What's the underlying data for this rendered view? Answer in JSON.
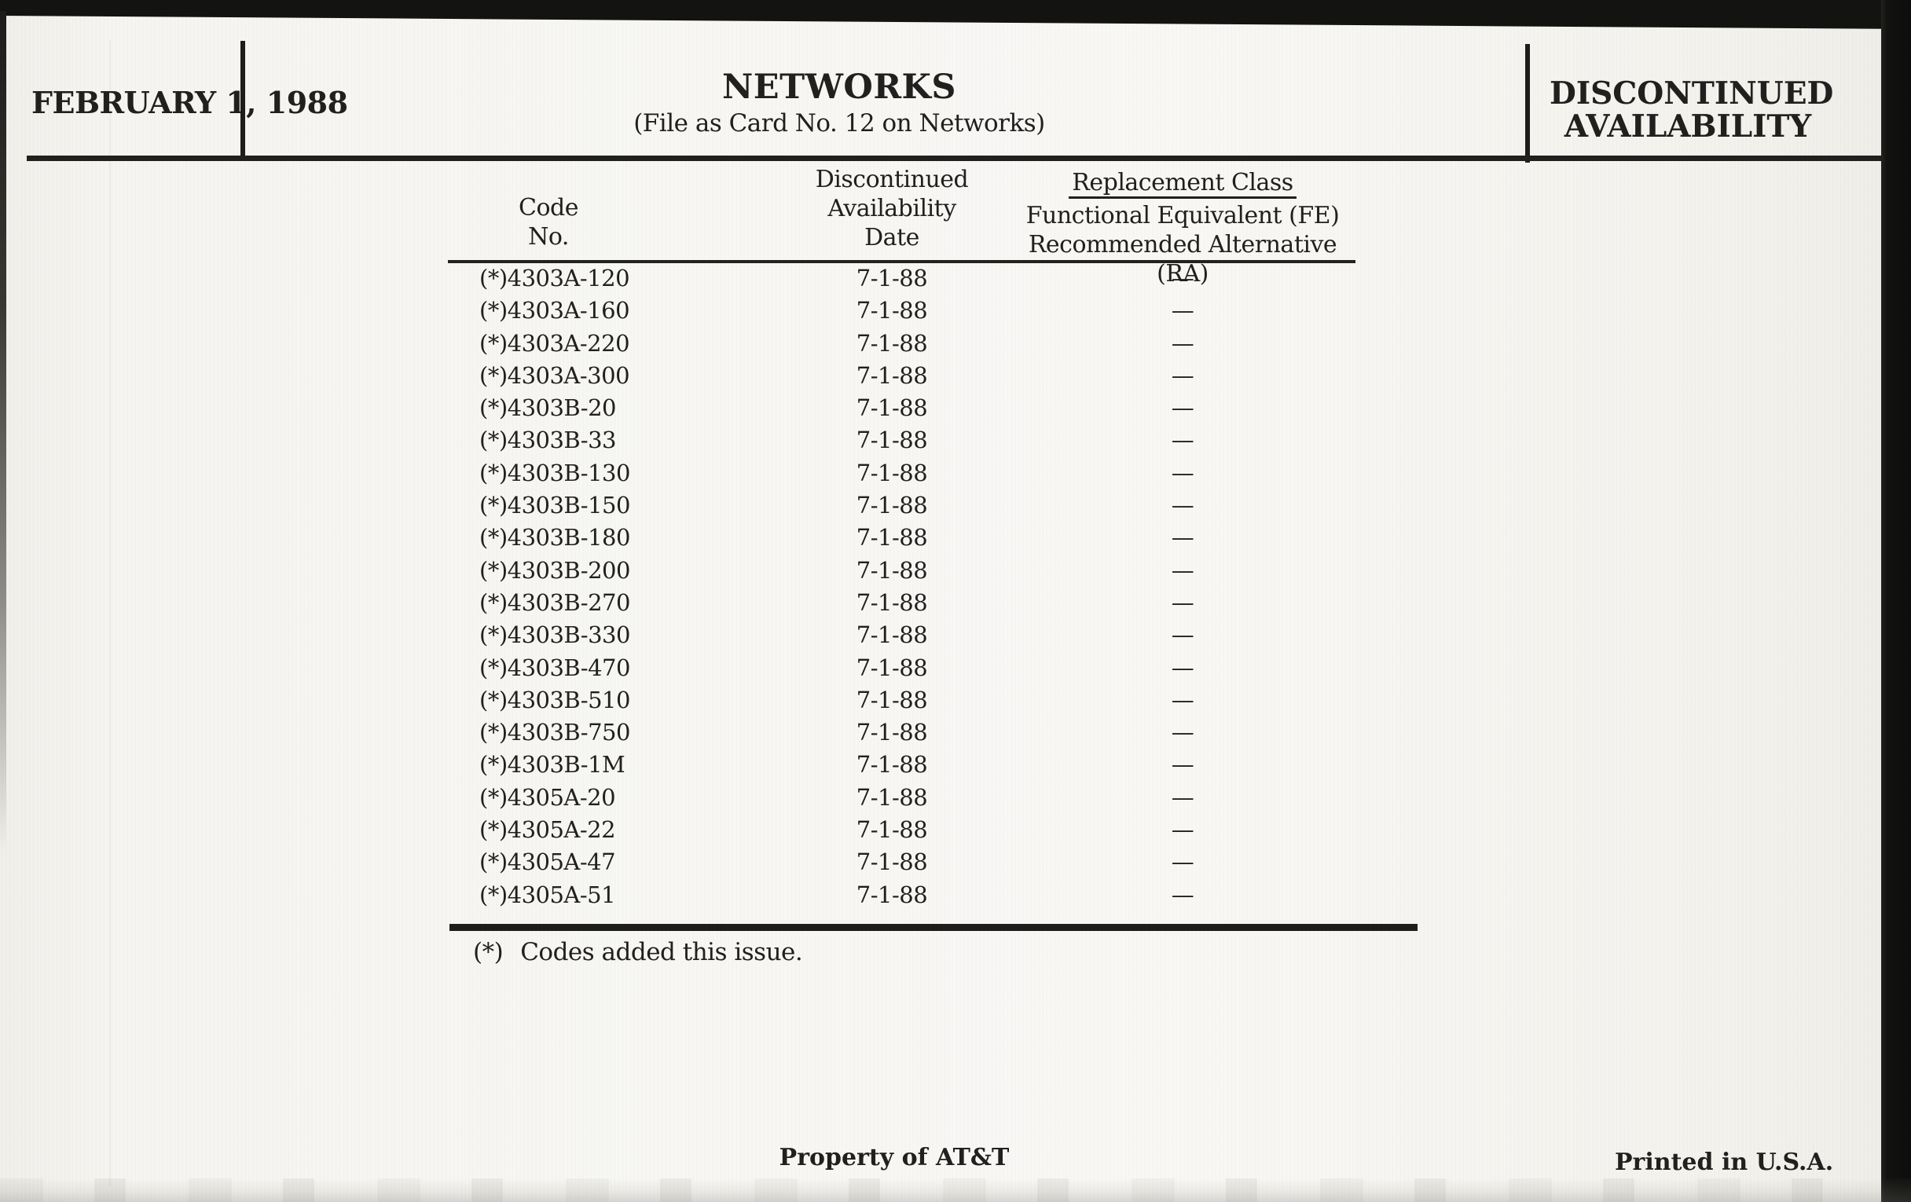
{
  "header": {
    "date": "FEBRUARY 1, 1988",
    "title": "NETWORKS",
    "subtitle": "(File as Card No. 12 on Networks)",
    "right_line1": "DISCONTINUED",
    "right_line2": "AVAILABILITY"
  },
  "table": {
    "col_code": [
      "Code",
      "No."
    ],
    "col_date": [
      "Discontinued",
      "Availability",
      "Date"
    ],
    "col_replacement": [
      "Replacement Class",
      "Functional Equivalent (FE)",
      "Recommended Alternative (RA)"
    ],
    "rows": [
      {
        "code": "(*)4303A-120",
        "date": "7-1-88",
        "replacement": "—"
      },
      {
        "code": "(*)4303A-160",
        "date": "7-1-88",
        "replacement": "—"
      },
      {
        "code": "(*)4303A-220",
        "date": "7-1-88",
        "replacement": "—"
      },
      {
        "code": "(*)4303A-300",
        "date": "7-1-88",
        "replacement": "—"
      },
      {
        "code": "(*)4303B-20",
        "date": "7-1-88",
        "replacement": "—"
      },
      {
        "code": "(*)4303B-33",
        "date": "7-1-88",
        "replacement": "—"
      },
      {
        "code": "(*)4303B-130",
        "date": "7-1-88",
        "replacement": "—"
      },
      {
        "code": "(*)4303B-150",
        "date": "7-1-88",
        "replacement": "—"
      },
      {
        "code": "(*)4303B-180",
        "date": "7-1-88",
        "replacement": "—"
      },
      {
        "code": "(*)4303B-200",
        "date": "7-1-88",
        "replacement": "—"
      },
      {
        "code": "(*)4303B-270",
        "date": "7-1-88",
        "replacement": "—"
      },
      {
        "code": "(*)4303B-330",
        "date": "7-1-88",
        "replacement": "—"
      },
      {
        "code": "(*)4303B-470",
        "date": "7-1-88",
        "replacement": "—"
      },
      {
        "code": "(*)4303B-510",
        "date": "7-1-88",
        "replacement": "—"
      },
      {
        "code": "(*)4303B-750",
        "date": "7-1-88",
        "replacement": "—"
      },
      {
        "code": "(*)4303B-1M",
        "date": "7-1-88",
        "replacement": "—"
      },
      {
        "code": "(*)4305A-20",
        "date": "7-1-88",
        "replacement": "—"
      },
      {
        "code": "(*)4305A-22",
        "date": "7-1-88",
        "replacement": "—"
      },
      {
        "code": "(*)4305A-47",
        "date": "7-1-88",
        "replacement": "—"
      },
      {
        "code": "(*)4305A-51",
        "date": "7-1-88",
        "replacement": "—"
      }
    ]
  },
  "footnote": {
    "marker": "(*)",
    "text": "Codes added this issue."
  },
  "footer": {
    "center": "Property of AT&T",
    "right": "Printed in U.S.A."
  },
  "colors": {
    "ink": "#21201e",
    "paper": "#f7f6f3",
    "scan_edge": "#131312"
  }
}
